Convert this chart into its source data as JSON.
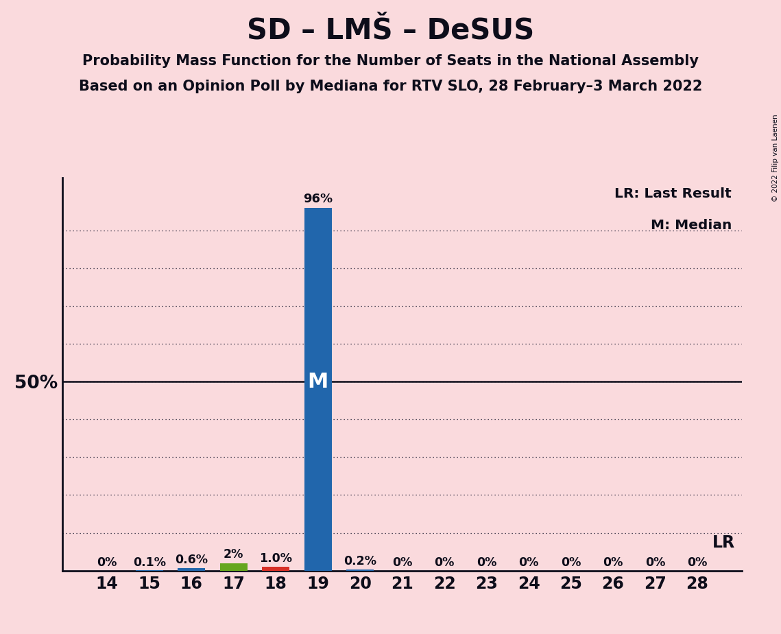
{
  "title": "SD – LMŠ – DeSUS",
  "subtitle1": "Probability Mass Function for the Number of Seats in the National Assembly",
  "subtitle2": "Based on an Opinion Poll by Mediana for RTV SLO, 28 February–3 March 2022",
  "copyright": "© 2022 Filip van Laenen",
  "seats": [
    14,
    15,
    16,
    17,
    18,
    19,
    20,
    21,
    22,
    23,
    24,
    25,
    26,
    27,
    28
  ],
  "probabilities": [
    0.0,
    0.001,
    0.006,
    0.02,
    0.01,
    0.96,
    0.002,
    0.0,
    0.0,
    0.0,
    0.0,
    0.0,
    0.0,
    0.0,
    0.0
  ],
  "labels": [
    "0%",
    "0.1%",
    "0.6%",
    "2%",
    "1.0%",
    "",
    "0.2%",
    "0%",
    "0%",
    "0%",
    "0%",
    "0%",
    "0%",
    "0%",
    "0%"
  ],
  "bar_colors": [
    "#2166AC",
    "#2166AC",
    "#2166AC",
    "#66A61E",
    "#D73027",
    "#2166AC",
    "#2166AC",
    "#2166AC",
    "#2166AC",
    "#2166AC",
    "#2166AC",
    "#2166AC",
    "#2166AC",
    "#2166AC",
    "#2166AC"
  ],
  "median_seat": 19,
  "median_label": "M",
  "bar_96_label": "96%",
  "lr_annotation": "LR",
  "legend_lr": "LR: Last Result",
  "legend_m": "M: Median",
  "background_color": "#FADADD",
  "ylim": [
    0,
    1.0
  ],
  "ylabel_50": "50%",
  "grid_color": "#1a1a2e",
  "font_color": "#0d0d1a"
}
